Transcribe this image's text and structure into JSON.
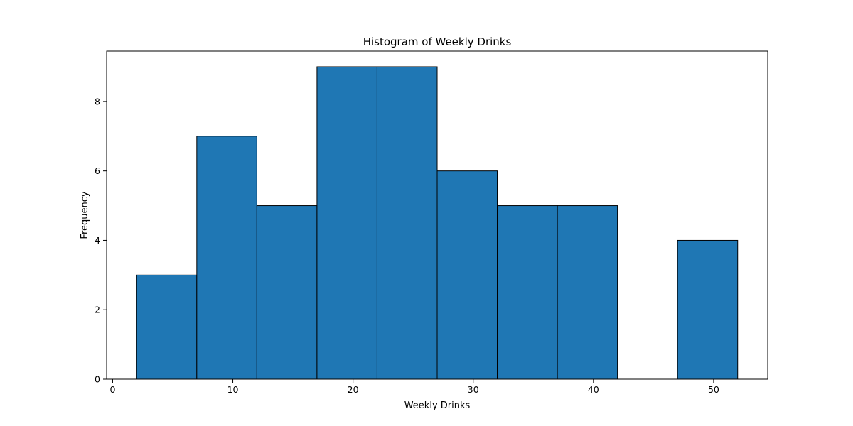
{
  "chart_data": {
    "type": "bar",
    "title": "Histogram of Weekly Drinks",
    "xlabel": "Weekly Drinks",
    "ylabel": "Frequency",
    "xlim": [
      -0.5,
      54.5
    ],
    "ylim": [
      0,
      9.45
    ],
    "xticks": [
      0,
      10,
      20,
      30,
      40,
      50
    ],
    "yticks": [
      0,
      2,
      4,
      6,
      8
    ],
    "bins": [
      {
        "start": 2,
        "end": 7,
        "count": 3
      },
      {
        "start": 7,
        "end": 12,
        "count": 7
      },
      {
        "start": 12,
        "end": 17,
        "count": 5
      },
      {
        "start": 17,
        "end": 22,
        "count": 9
      },
      {
        "start": 22,
        "end": 27,
        "count": 9
      },
      {
        "start": 27,
        "end": 32,
        "count": 6
      },
      {
        "start": 32,
        "end": 37,
        "count": 5
      },
      {
        "start": 37,
        "end": 42,
        "count": 5
      },
      {
        "start": 42,
        "end": 47,
        "count": 0
      },
      {
        "start": 47,
        "end": 52,
        "count": 4
      }
    ],
    "grid": false,
    "bar_color": "#1f77b4",
    "edge_color": "#000000"
  }
}
